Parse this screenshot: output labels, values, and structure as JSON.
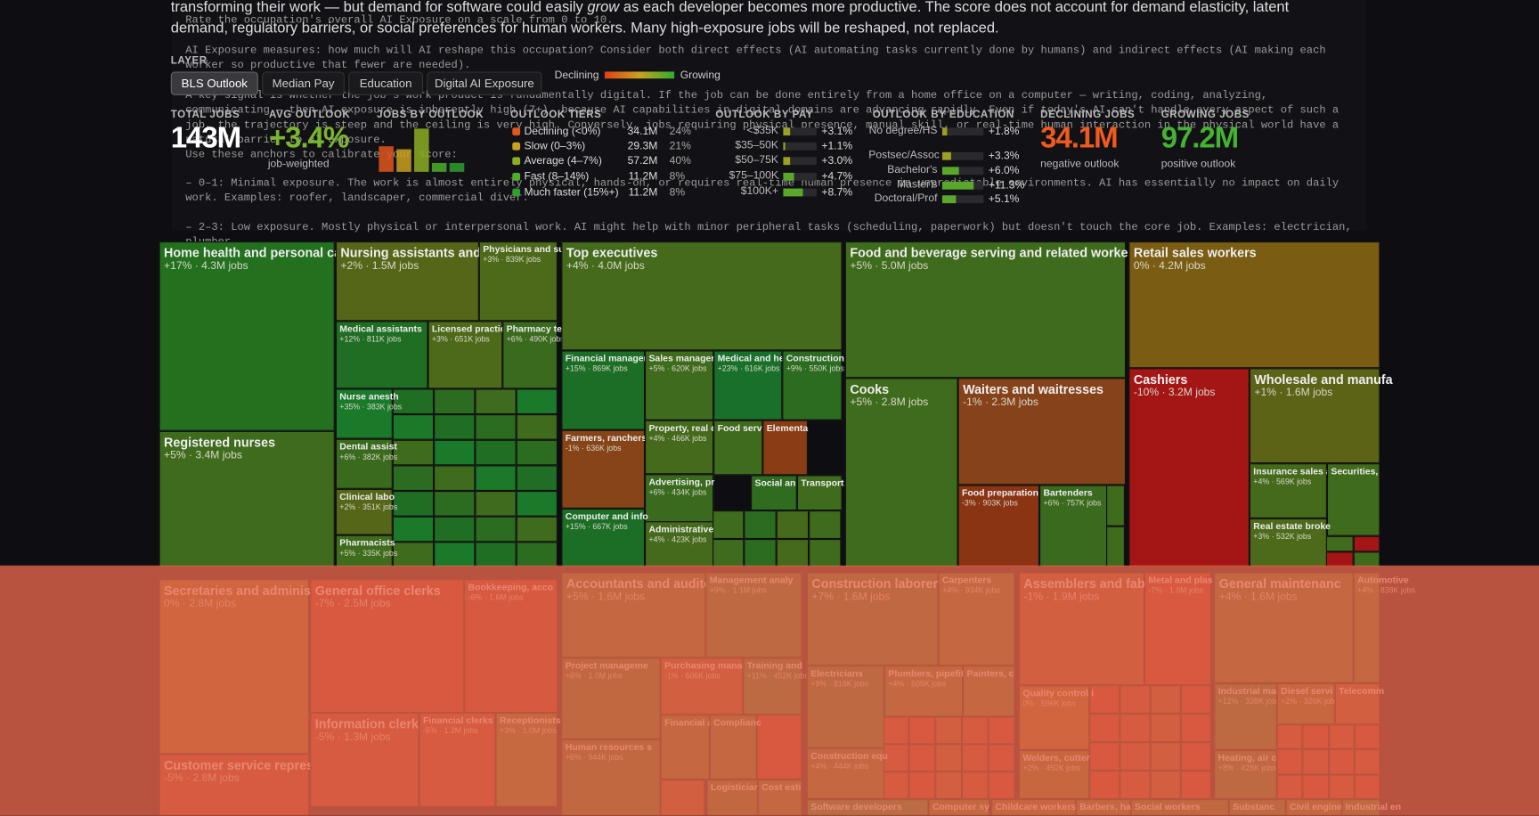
{
  "intro": {
    "before": "transforming their work — but demand for software could easily ",
    "emphasis": "grow",
    "after": " as each developer becomes more productive. The score does not account for demand elasticity, latent demand, regulatory barriers, or social preferences for human workers. Many high-exposure jobs will be reshaped, not replaced."
  },
  "prompt": [
    "Rate the occupation's overall AI Exposure on a scale from 0 to 10.",
    "AI Exposure measures: how much will AI reshape this occupation? Consider both direct effects (AI automating tasks currently done by humans) and indirect effects (AI making each worker so productive that fewer are needed).",
    "A key signal is whether the job's work product is fundamentally digital. If the job can be done entirely from a home office on a computer — writing, coding, analyzing, communicating — then AI exposure is inherently high (7+), because AI capabilities in digital domains are advancing rapidly. Even if today's AI can't handle every aspect of such a job, the trajectory is steep and the ceiling is very high. Conversely, jobs requiring physical presence, manual skill, or real-time human interaction in the physical world have a natural barrier to AI exposure.",
    "Use these anchors to calibrate your score:",
    "– 0–1: Minimal exposure. The work is almost entirely physical, hands-on, or requires real-time human presence in unpredictable environments. AI has essentially no impact on daily work. Examples: roofer, landscaper, commercial diver.",
    "– 2–3: Low exposure. Mostly physical or interpersonal work. AI might help with minor peripheral tasks (scheduling, paperwork) but doesn't touch the core job. Examples: electrician, plumber,"
  ],
  "controls": {
    "label": "LAYER",
    "layers": [
      "BLS Outlook",
      "Median Pay",
      "Education",
      "Digital AI Exposure"
    ],
    "active": "BLS Outlook",
    "legend_low": "Declining",
    "legend_high": "Growing"
  },
  "stats": {
    "total": {
      "label": "TOTAL JOBS",
      "value": "143M"
    },
    "avg": {
      "label": "AVG OUTLOOK",
      "value": "+3.4%",
      "note": "job-weighted",
      "color": "#7ab530"
    },
    "histogram": {
      "label": "JOBS BY OUTLOOK"
    },
    "tiers": {
      "label": "OUTLOOK TIERS",
      "rows": [
        {
          "name": "Declining (<0%)",
          "jobs": "34.1M",
          "share": 24,
          "share_label": "24%",
          "color": "#e0561c"
        },
        {
          "name": "Slow (0–3%)",
          "jobs": "29.3M",
          "share": 21,
          "share_label": "21%",
          "color": "#c9a21e"
        },
        {
          "name": "Average (4–7%)",
          "jobs": "57.2M",
          "share": 40,
          "share_label": "40%",
          "color": "#8caf22"
        },
        {
          "name": "Fast (8–14%)",
          "jobs": "11.2M",
          "share": 8,
          "share_label": "8%",
          "color": "#4fae2c"
        },
        {
          "name": "Much faster (15%+)",
          "jobs": "11.2M",
          "share": 8,
          "share_label": "8%",
          "color": "#2f9e2e"
        }
      ]
    },
    "pay": {
      "label": "OUTLOOK BY PAY",
      "rows": [
        {
          "name": "<$35K",
          "value": 3.1,
          "value_label": "+3.1%"
        },
        {
          "name": "$35–50K",
          "value": 1.1,
          "value_label": "+1.1%"
        },
        {
          "name": "$50–75K",
          "value": 3.0,
          "value_label": "+3.0%"
        },
        {
          "name": "$75–100K",
          "value": 4.7,
          "value_label": "+4.7%"
        },
        {
          "name": "$100K+",
          "value": 8.7,
          "value_label": "+8.7%"
        }
      ]
    },
    "education": {
      "label": "OUTLOOK BY EDUCATION",
      "rows": [
        {
          "name": "No degree/HS",
          "value": 1.8,
          "value_label": "+1.8%"
        },
        {
          "name": "Postsec/Assoc",
          "value": 3.3,
          "value_label": "+3.3%"
        },
        {
          "name": "Bachelor's",
          "value": 6.0,
          "value_label": "+6.0%"
        },
        {
          "name": "Master's",
          "value": 11.3,
          "value_label": "+11.3%"
        },
        {
          "name": "Doctoral/Prof",
          "value": 5.1,
          "value_label": "+5.1%"
        }
      ]
    },
    "declining": {
      "label": "DECLINING JOBS",
      "value": "34.1M",
      "note": "negative outlook",
      "color": "#f05a1e"
    },
    "growing": {
      "label": "GROWING JOBS",
      "value": "97.2M",
      "note": "positive outlook",
      "color": "#44b232"
    }
  },
  "treemap": {
    "tiles": [
      {
        "name": "Home health and personal care",
        "detail": "+17% · 4.3M jobs",
        "color": "#23701f"
      },
      {
        "name": "Registered nurses",
        "detail": "+5% · 3.4M jobs",
        "color": "#3f6b1d"
      },
      {
        "name": "Nursing assistants and o",
        "detail": "+2% · 1.5M jobs",
        "color": "#556618"
      },
      {
        "name": "Physicians and su",
        "detail": "+3% · 839K jobs",
        "color": "#4d6a1a"
      },
      {
        "name": "Medical assistants",
        "detail": "+12% · 811K jobs",
        "color": "#1f6e24"
      },
      {
        "name": "Licensed practic",
        "detail": "+3% · 651K jobs",
        "color": "#4d6a1a"
      },
      {
        "name": "Pharmacy te",
        "detail": "+6% · 490K jobs",
        "color": "#3a6a1e"
      },
      {
        "name": "Nurse anesth",
        "detail": "+35% · 383K jobs",
        "color": "#1a7a2a"
      },
      {
        "name": "Dental assist",
        "detail": "+6% · 382K jobs",
        "color": "#3a6a1e"
      },
      {
        "name": "Clinical labo",
        "detail": "+2% · 351K jobs",
        "color": "#556618"
      },
      {
        "name": "Pharmacists",
        "detail": "+5% · 335K jobs",
        "color": "#3f6b1d"
      },
      {
        "name": "Top executives",
        "detail": "+4% · 4.0M jobs",
        "color": "#456a1c"
      },
      {
        "name": "Financial manager",
        "detail": "+15% · 869K jobs",
        "color": "#1c6e26"
      },
      {
        "name": "Sales manager",
        "detail": "+5% · 620K jobs",
        "color": "#3f6b1d"
      },
      {
        "name": "Medical and he",
        "detail": "+23% · 616K jobs",
        "color": "#19702a"
      },
      {
        "name": "Construction",
        "detail": "+9% · 550K jobs",
        "color": "#2c6c20"
      },
      {
        "name": "Farmers, ranchers",
        "detail": "-1% · 636K jobs",
        "color": "#874418"
      },
      {
        "name": "Property, real e",
        "detail": "+4% · 466K jobs",
        "color": "#456a1c"
      },
      {
        "name": "Food serv",
        "color": "#3f6b1d"
      },
      {
        "name": "Elementa",
        "color": "#8a3c14"
      },
      {
        "name": "Advertising, pr",
        "detail": "+6% · 434K jobs",
        "color": "#3a6a1e"
      },
      {
        "name": "Social an",
        "color": "#2f6c20"
      },
      {
        "name": "Transport",
        "color": "#3f6b1d"
      },
      {
        "name": "Computer and info",
        "detail": "+15% · 667K jobs",
        "color": "#1c6e26"
      },
      {
        "name": "Administrative",
        "detail": "+4% · 423K jobs",
        "color": "#456a1c"
      },
      {
        "name": "Food and beverage serving and related workers",
        "detail": "+5% · 5.0M jobs",
        "color": "#3f6b1d"
      },
      {
        "name": "Cooks",
        "detail": "+5% · 2.8M jobs",
        "color": "#3f6b1d"
      },
      {
        "name": "Waiters and waitresses",
        "detail": "-1% · 2.3M jobs",
        "color": "#86431a"
      },
      {
        "name": "Food preparation w",
        "detail": "-3% · 903K jobs",
        "color": "#8a3414"
      },
      {
        "name": "Bartenders",
        "detail": "+6% · 757K jobs",
        "color": "#3a6a1e"
      },
      {
        "name": "Retail sales workers",
        "detail": "0% · 4.2M jobs",
        "color": "#7a5c12"
      },
      {
        "name": "Cashiers",
        "detail": "-10% · 3.2M jobs",
        "color": "#a41616"
      },
      {
        "name": "Wholesale and manufa",
        "detail": "+1% · 1.6M jobs",
        "color": "#5c6216"
      },
      {
        "name": "Insurance sales a",
        "detail": "+4% · 569K jobs",
        "color": "#456a1c"
      },
      {
        "name": "Securities,",
        "color": "#3f6b1d"
      },
      {
        "name": "Real estate broke",
        "detail": "+3% · 532K jobs",
        "color": "#4d6a1a"
      },
      {
        "name": "Secretaries and administra",
        "detail": "0% · 2.8M jobs",
        "color": "#7a5c12"
      },
      {
        "name": "Customer service represe",
        "detail": "-5% · 2.8M jobs",
        "color": "#98301a"
      },
      {
        "name": "General office clerks",
        "detail": "-7% · 2.5M jobs",
        "color": "#a02818"
      },
      {
        "name": "Bookkeeping, acco",
        "detail": "-6% · 1.6M jobs",
        "color": "#9c2c18"
      },
      {
        "name": "Information clerks",
        "detail": "-5% · 1.3M jobs",
        "color": "#98301a"
      },
      {
        "name": "Financial clerks",
        "detail": "-5% · 1.2M jobs",
        "color": "#98301a"
      },
      {
        "name": "Receptionists",
        "detail": "+3% · 1.0M jobs",
        "color": "#4d6a1a"
      },
      {
        "name": "Accountants and auditor",
        "detail": "+5% · 1.6M jobs",
        "color": "#3f6b1d"
      },
      {
        "name": "Management analy",
        "detail": "+9% · 1.1M jobs",
        "color": "#2c6c20"
      },
      {
        "name": "Project manageme",
        "detail": "+6% · 1.0M jobs",
        "color": "#3a6a1e"
      },
      {
        "name": "Purchasing manag",
        "detail": "-1% · 606K jobs",
        "color": "#86431a"
      },
      {
        "name": "Training and",
        "detail": "+11% · 452K jobs",
        "color": "#246e22"
      },
      {
        "name": "Human resources s",
        "detail": "+6% · 944K jobs",
        "color": "#3a6a1e"
      },
      {
        "name": "Financial a",
        "color": "#3f6b1d"
      },
      {
        "name": "Complianc",
        "color": "#3f6b1d"
      },
      {
        "name": "Logisticiar",
        "color": "#3a6a1e"
      },
      {
        "name": "Cost esti",
        "color": "#456a1c"
      },
      {
        "name": "Construction laborers",
        "detail": "+7% · 1.6M jobs",
        "color": "#356b1f"
      },
      {
        "name": "Carpenters",
        "detail": "+4% · 934K jobs",
        "color": "#456a1c"
      },
      {
        "name": "Electricians",
        "detail": "+9% · 818K jobs",
        "color": "#2c6c20"
      },
      {
        "name": "Plumbers, pipefit",
        "detail": "+4% · 505K jobs",
        "color": "#456a1c"
      },
      {
        "name": "Painters, c",
        "color": "#456a1c"
      },
      {
        "name": "Construction equ",
        "detail": "+4% · 444K jobs",
        "color": "#456a1c"
      },
      {
        "name": "Software developers",
        "color": "#1a7a2a"
      },
      {
        "name": "Computer sy",
        "color": "#3f6b1d"
      },
      {
        "name": "Assemblers and fabri",
        "detail": "-1% · 1.9M jobs",
        "color": "#86431a"
      },
      {
        "name": "Metal and plas",
        "detail": "-7% · 1.0M jobs",
        "color": "#a02818"
      },
      {
        "name": "Quality control i",
        "detail": "0% · 596K jobs",
        "color": "#7a5c12"
      },
      {
        "name": "Welders, cutter",
        "detail": "+2% · 452K jobs",
        "color": "#556618"
      },
      {
        "name": "General maintenanc",
        "detail": "+4% · 1.6M jobs",
        "color": "#456a1c"
      },
      {
        "name": "Automotive",
        "detail": "+4% · 838K jobs",
        "color": "#456a1c"
      },
      {
        "name": "Industrial mac",
        "detail": "+12% · 338K jobs",
        "color": "#246e22"
      },
      {
        "name": "Diesel servi",
        "detail": "+2% · 326K jobs",
        "color": "#556618"
      },
      {
        "name": "Telecomm",
        "color": "#86431a"
      },
      {
        "name": "Heating, air c",
        "detail": "+8% · 428K jobs",
        "color": "#2f6c20"
      },
      {
        "name": "Childcare workers",
        "color": "#556618"
      },
      {
        "name": "Barbers, ha",
        "color": "#3f6b1d"
      },
      {
        "name": "Social workers",
        "color": "#3a6a1e"
      },
      {
        "name": "Substanc",
        "color": "#2c6c20"
      },
      {
        "name": "Civil enginee",
        "color": "#3f6b1d"
      },
      {
        "name": "Industrial en",
        "color": "#2c6c20"
      }
    ]
  }
}
